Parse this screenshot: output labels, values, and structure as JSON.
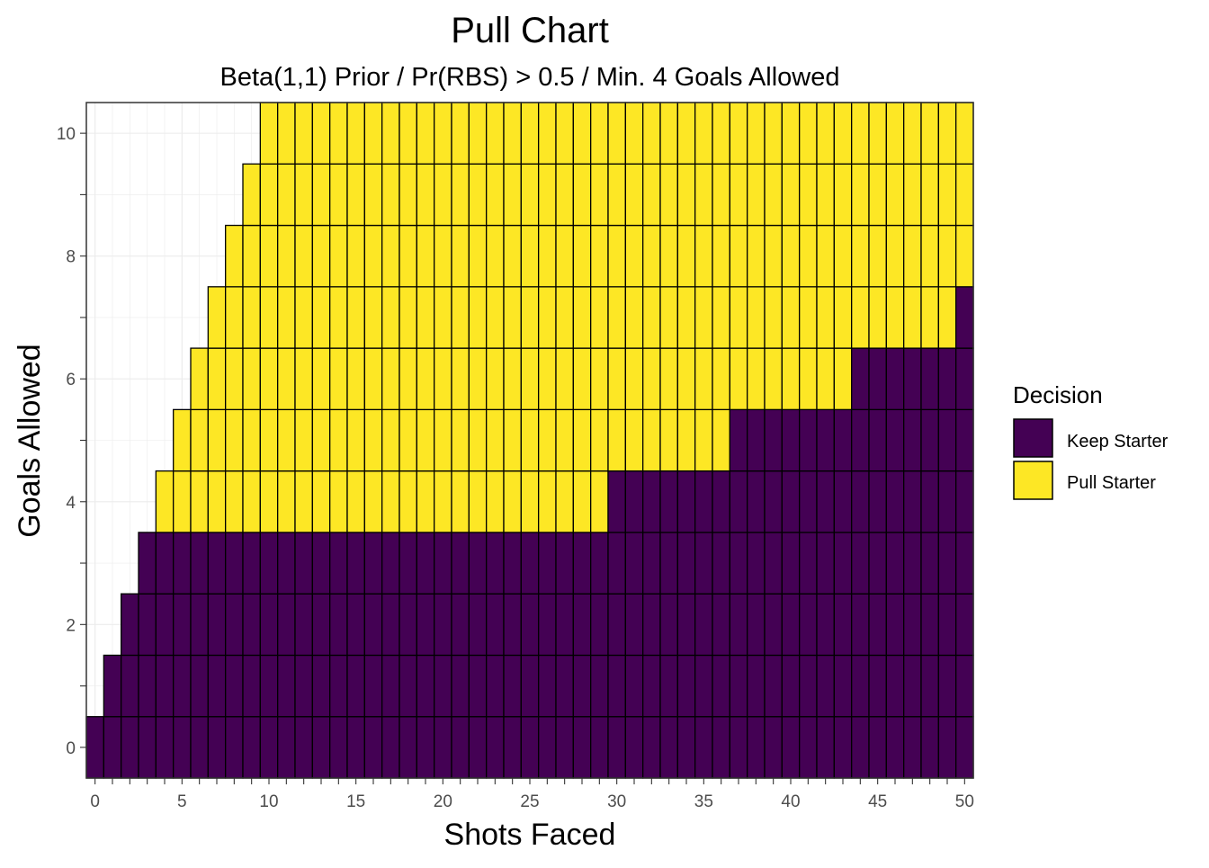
{
  "chart_data": {
    "type": "heatmap",
    "title": "Pull Chart",
    "subtitle": "Beta(1,1) Prior / Pr(RBS) > 0.5 / Min. 4 Goals Allowed",
    "xlabel": "Shots Faced",
    "ylabel": "Goals Allowed",
    "x_range": [
      0,
      50
    ],
    "y_range": [
      0,
      10
    ],
    "xlim": [
      -0.5,
      50.5
    ],
    "ylim": [
      -0.5,
      10.5
    ],
    "x_ticks": [
      0,
      5,
      10,
      15,
      20,
      25,
      30,
      35,
      40,
      45,
      50
    ],
    "y_ticks": [
      0,
      2,
      4,
      6,
      8,
      10
    ],
    "grid": true,
    "legend": {
      "title": "Decision",
      "position": "right",
      "entries": [
        {
          "label": "Keep Starter",
          "color": "#440154"
        },
        {
          "label": "Pull Starter",
          "color": "#FDE725"
        }
      ]
    },
    "rule": {
      "description_of_cells": "a cell exists when goals allowed <= shots faced; cells with fewer than 4 goals are always Keep Starter; otherwise Keep Starter when shots faced >= keep_min_shots[goals]",
      "min_goals_for_pull": 4,
      "keep_min_shots": {
        "4": 30,
        "5": 37,
        "6": 44,
        "7": 50,
        "8": 51,
        "9": 51,
        "10": 51
      }
    }
  },
  "colors": {
    "keep": "#440154",
    "pull": "#FDE725",
    "cell_border": "#000000",
    "grid": "#ebebeb",
    "panel_border": "#333333"
  }
}
